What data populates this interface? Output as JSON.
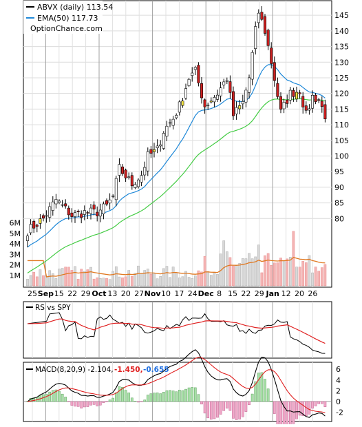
{
  "chart_data": [
    {
      "type": "candlestick",
      "title": "ABVX (daily) 113.54",
      "watermark": "OptionChance.com",
      "legend": [
        {
          "label": "ABVX (daily) 113.54",
          "color": "#000000"
        },
        {
          "label": "EMA(50) 117.73",
          "color": "#1e88d8"
        }
      ],
      "x_tick_labels": [
        "25",
        "Sep",
        "15",
        "22",
        "29",
        "Oct",
        "13",
        "20",
        "27",
        "Nov",
        "10",
        "17",
        "24",
        "Dec",
        "8",
        "15",
        "22",
        "29",
        "Jan",
        "12",
        "20",
        "26"
      ],
      "y_tick_labels": [
        "80",
        "85",
        "90",
        "95",
        "100",
        "105",
        "110",
        "115",
        "120",
        "125",
        "130",
        "135",
        "140",
        "145"
      ],
      "ylim": [
        75,
        149
      ],
      "volume_tick_labels": [
        "1M",
        "2M",
        "3M",
        "4M",
        "5M",
        "6M"
      ],
      "volume_ylim": [
        0,
        6.5
      ],
      "colors": {
        "up_candle": "#ffffff",
        "down_candle": "#cc2020",
        "yellow_candle": "#f0e040",
        "ema_fast": "#1e88d8",
        "ema_slow": "#44cc44",
        "volume_up": "#d8d8d8",
        "volume_down": "#f4b4b4",
        "volume_avg": "#e07820"
      },
      "price_keypoints": [
        [
          0,
          76
        ],
        [
          5,
          80
        ],
        [
          9,
          86
        ],
        [
          11,
          84
        ],
        [
          14,
          81
        ],
        [
          18,
          82
        ],
        [
          22,
          82
        ],
        [
          25,
          84
        ],
        [
          27,
          87
        ],
        [
          29,
          96
        ],
        [
          33,
          91
        ],
        [
          36,
          94
        ],
        [
          38,
          100
        ],
        [
          41,
          102
        ],
        [
          43,
          108
        ],
        [
          46,
          112
        ],
        [
          48,
          116
        ],
        [
          51,
          125
        ],
        [
          53,
          127
        ],
        [
          56,
          116
        ],
        [
          60,
          120
        ],
        [
          63,
          125
        ],
        [
          65,
          113
        ],
        [
          68,
          117
        ],
        [
          70,
          125
        ],
        [
          72,
          140
        ],
        [
          73,
          146
        ],
        [
          75,
          140
        ],
        [
          77,
          130
        ],
        [
          80,
          114
        ],
        [
          83,
          120
        ],
        [
          86,
          121
        ],
        [
          88,
          113
        ],
        [
          90,
          119
        ],
        [
          92,
          118
        ],
        [
          94,
          113
        ]
      ]
    },
    {
      "type": "line",
      "title": "RS vs SPY",
      "series": [
        {
          "name": "RS vs SPY",
          "color": "#000000"
        },
        {
          "name": "",
          "color": "#e02020"
        }
      ]
    },
    {
      "type": "line",
      "title": "MACD(8,20,9) -2.104, -1.450, -0.655",
      "legend": [
        {
          "label": "MACD(8,20,9) -2.104,",
          "color": "#000000"
        },
        {
          "label": "-1.450,",
          "color": "#e02020"
        },
        {
          "label": "-0.655",
          "color": "#1e6ee0"
        }
      ],
      "y_tick_labels": [
        "-2",
        "0",
        "2",
        "4",
        "6"
      ],
      "ylim": [
        -3.2,
        6.8
      ],
      "colors": {
        "macd": "#000000",
        "signal": "#e02020",
        "hist_up": "#a8e0a8",
        "hist_down": "#f0a8c8"
      }
    }
  ]
}
